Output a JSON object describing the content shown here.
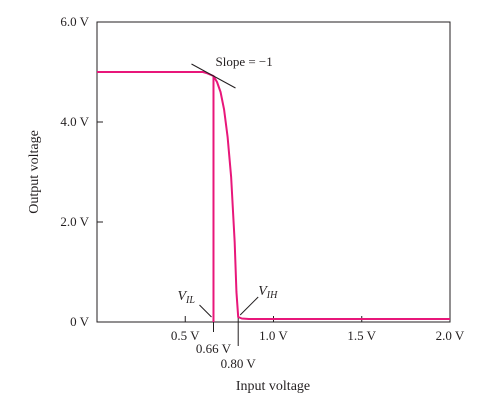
{
  "chart_data": {
    "type": "line",
    "xlabel": "Input voltage",
    "ylabel": "Output voltage",
    "xlim": [
      0,
      2.0
    ],
    "ylim": [
      0,
      6.0
    ],
    "x_ticks": [
      {
        "value": 0.5,
        "label": "0.5 V"
      },
      {
        "value": 1.0,
        "label": "1.0 V"
      },
      {
        "value": 1.5,
        "label": "1.5 V"
      },
      {
        "value": 2.0,
        "label": "2.0 V"
      }
    ],
    "y_ticks": [
      {
        "value": 0,
        "label": "0 V"
      },
      {
        "value": 2.0,
        "label": "2.0 V"
      },
      {
        "value": 4.0,
        "label": "4.0 V"
      },
      {
        "value": 6.0,
        "label": "6.0 V"
      }
    ],
    "grid": false,
    "series": [
      {
        "color": "#e8177a",
        "x": [
          0,
          0.6,
          0.62,
          0.64,
          0.66,
          0.68,
          0.7,
          0.72,
          0.74,
          0.76,
          0.78,
          0.79,
          0.8,
          0.82,
          0.86,
          1.0,
          1.5,
          2.0
        ],
        "y": [
          5.0,
          5.0,
          4.98,
          4.95,
          4.92,
          4.8,
          4.6,
          4.25,
          3.7,
          2.9,
          1.6,
          0.6,
          0.1,
          0.07,
          0.06,
          0.06,
          0.06,
          0.06
        ]
      }
    ],
    "vertical_markers": [
      {
        "x": 0.66,
        "label": "0.66 V",
        "color": "#e8177a"
      },
      {
        "x": 0.8,
        "label": "0.80 V",
        "color": "#231f20"
      }
    ],
    "annotations": {
      "slope": {
        "text": "Slope = −1",
        "x": 0.66,
        "y": 4.92
      },
      "vil": {
        "text": "V",
        "subscript": "IL",
        "x": 0.66,
        "y": 0.06
      },
      "vih": {
        "text": "V",
        "subscript": "IH",
        "x": 0.8,
        "y": 0.1
      }
    }
  }
}
